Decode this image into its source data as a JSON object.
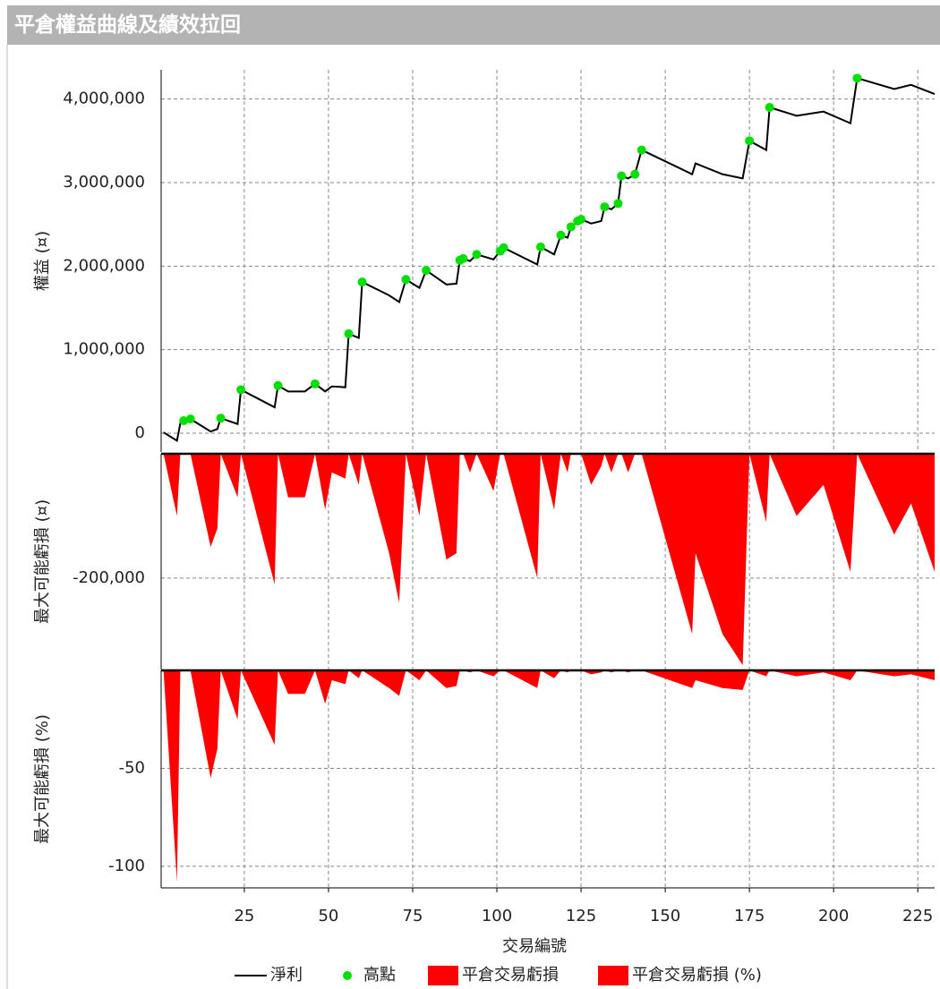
{
  "header": {
    "title": "平倉權益曲線及績效拉回"
  },
  "chart_data": [
    {
      "type": "line",
      "ylabel": "權益 (¤)",
      "xlim": [
        0.3,
        230
      ],
      "ylim": [
        -225000,
        4350000
      ],
      "yticks": [
        0,
        {
          "value": 1000000,
          "label": "1,000,000"
        },
        {
          "value": 2000000,
          "label": "2,000,000"
        },
        {
          "value": 3000000,
          "label": "3,000,000"
        },
        {
          "value": 4000000,
          "label": "4,000,000"
        }
      ],
      "grid": true,
      "series": [
        {
          "name": "淨利",
          "type": "line",
          "color": "#000000",
          "x": [
            1,
            5,
            6,
            7,
            9,
            15,
            17,
            18,
            23,
            24,
            34,
            35,
            38,
            43,
            46,
            49,
            51,
            55,
            56,
            59,
            60,
            68,
            71,
            73,
            77,
            79,
            85,
            88,
            89,
            90,
            92,
            94,
            99,
            101,
            102,
            112,
            113,
            117,
            119,
            121,
            122,
            124,
            125,
            128,
            131,
            132,
            134,
            136,
            137,
            139,
            141,
            143,
            158,
            159,
            167,
            173,
            175,
            180,
            181,
            189,
            197,
            205,
            207,
            218,
            223,
            230
          ],
          "values": [
            10000,
            -90000,
            120000,
            150000,
            170000,
            20000,
            50000,
            180000,
            110000,
            520000,
            310000,
            570000,
            500000,
            500000,
            590000,
            500000,
            560000,
            550000,
            1190000,
            1140000,
            1810000,
            1650000,
            1570000,
            1840000,
            1740000,
            1950000,
            1780000,
            1790000,
            2070000,
            2090000,
            2060000,
            2140000,
            2080000,
            2180000,
            2220000,
            2020000,
            2230000,
            2140000,
            2370000,
            2340000,
            2470000,
            2540000,
            2560000,
            2510000,
            2540000,
            2710000,
            2680000,
            2750000,
            3080000,
            3050000,
            3100000,
            3390000,
            3100000,
            3230000,
            3100000,
            3050000,
            3500000,
            3390000,
            3900000,
            3800000,
            3850000,
            3710000,
            4250000,
            4120000,
            4170000,
            4060000
          ]
        },
        {
          "name": "高點",
          "type": "scatter",
          "color": "#00e000",
          "x": [
            7,
            9,
            18,
            24,
            35,
            46,
            56,
            60,
            73,
            79,
            89,
            90,
            94,
            101,
            102,
            113,
            119,
            122,
            124,
            125,
            132,
            136,
            137,
            141,
            143,
            175,
            181,
            207
          ],
          "values": [
            150000,
            170000,
            180000,
            520000,
            570000,
            590000,
            1190000,
            1810000,
            1840000,
            1950000,
            2070000,
            2090000,
            2140000,
            2180000,
            2220000,
            2230000,
            2370000,
            2470000,
            2540000,
            2560000,
            2710000,
            2750000,
            3080000,
            3100000,
            3390000,
            3500000,
            3900000,
            4250000
          ]
        }
      ]
    },
    {
      "type": "area",
      "ylabel": "最大可能虧損 (¤)",
      "xlim": [
        0.3,
        230
      ],
      "ylim": [
        -347000,
        0
      ],
      "yticks": [
        {
          "value": -200000,
          "label": "-200,000"
        }
      ],
      "grid": true,
      "series": [
        {
          "name": "平倉交易虧損",
          "color": "#ff0000",
          "x": [
            1,
            5,
            6,
            7,
            9,
            15,
            17,
            18,
            23,
            24,
            34,
            35,
            38,
            43,
            46,
            49,
            51,
            55,
            56,
            59,
            60,
            68,
            71,
            73,
            77,
            79,
            85,
            88,
            89,
            90,
            92,
            94,
            99,
            101,
            102,
            112,
            113,
            117,
            119,
            121,
            122,
            124,
            125,
            128,
            131,
            132,
            134,
            136,
            137,
            139,
            141,
            143,
            158,
            159,
            167,
            173,
            175,
            180,
            181,
            189,
            197,
            205,
            207,
            218,
            223,
            230
          ],
          "values": [
            0,
            -100000,
            0,
            0,
            0,
            -150000,
            -120000,
            0,
            -70000,
            0,
            -210000,
            0,
            -70000,
            -70000,
            0,
            -90000,
            -30000,
            -40000,
            0,
            -50000,
            0,
            -160000,
            -240000,
            0,
            -100000,
            0,
            -170000,
            -160000,
            0,
            0,
            -30000,
            0,
            -60000,
            0,
            0,
            -200000,
            0,
            -90000,
            0,
            -30000,
            0,
            0,
            0,
            -50000,
            -20000,
            0,
            -30000,
            0,
            0,
            -30000,
            0,
            0,
            -290000,
            -160000,
            -290000,
            -340000,
            0,
            -110000,
            0,
            -100000,
            -50000,
            -190000,
            0,
            -130000,
            -80000,
            -190000
          ]
        }
      ]
    },
    {
      "type": "area",
      "ylabel": "最大可能虧損 (%)",
      "xlabel": "交易編號",
      "xlim": [
        0.3,
        230
      ],
      "ylim": [
        -111,
        0
      ],
      "xticks": [
        25,
        50,
        75,
        100,
        125,
        150,
        175,
        200,
        225
      ],
      "yticks": [
        -50,
        -100
      ],
      "grid": true,
      "series": [
        {
          "name": "平倉交易虧損 (%)",
          "color": "#ff0000",
          "x": [
            1,
            5,
            6,
            7,
            9,
            15,
            17,
            18,
            23,
            24,
            34,
            35,
            38,
            43,
            46,
            49,
            51,
            55,
            56,
            59,
            60,
            68,
            71,
            73,
            77,
            79,
            85,
            88,
            89,
            90,
            92,
            94,
            99,
            101,
            102,
            112,
            113,
            117,
            119,
            121,
            122,
            124,
            125,
            128,
            131,
            132,
            134,
            136,
            137,
            139,
            141,
            143,
            158,
            159,
            167,
            173,
            175,
            180,
            181,
            189,
            197,
            205,
            207,
            218,
            223,
            230
          ],
          "values": [
            0,
            -108,
            0,
            0,
            0,
            -55,
            -40,
            0,
            -25,
            0,
            -38,
            0,
            -12,
            -12,
            0,
            -17,
            -5,
            -7,
            0,
            -4,
            0,
            -9,
            -13,
            0,
            -5,
            0,
            -9,
            -8,
            0,
            0,
            -1,
            0,
            -3,
            0,
            0,
            -9,
            0,
            -4,
            0,
            -1,
            0,
            0,
            0,
            -2,
            -1,
            0,
            -1,
            0,
            0,
            -1,
            0,
            0,
            -9,
            -5,
            -9,
            -10,
            0,
            -3,
            0,
            -3,
            -1,
            -5,
            0,
            -3,
            -2,
            -5
          ]
        }
      ]
    }
  ]
}
